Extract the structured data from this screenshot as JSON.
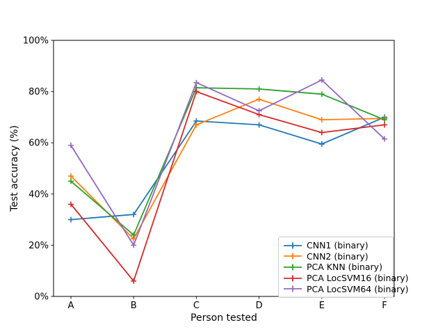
{
  "chart_data": {
    "type": "line",
    "title": "",
    "xlabel": "Person tested",
    "ylabel": "Test accuracy (%)",
    "categories": [
      "A",
      "B",
      "C",
      "D",
      "E",
      "F"
    ],
    "ytick_labels": [
      "0%",
      "20%",
      "40%",
      "60%",
      "80%",
      "100%"
    ],
    "ytick_values": [
      0,
      20,
      40,
      60,
      80,
      100
    ],
    "ylim": [
      0,
      100
    ],
    "grid": false,
    "legend_position": "lower right",
    "marker": "plus",
    "background_color": "#ffffff",
    "spine_color": "#000000",
    "series": [
      {
        "name": "CNN1 (binary)",
        "color": "#1f77b4",
        "values": [
          30,
          32,
          68.5,
          67,
          59.5,
          70
        ]
      },
      {
        "name": "CNN2 (binary)",
        "color": "#ff7f0e",
        "values": [
          47,
          22.5,
          67,
          77,
          69,
          69.5
        ]
      },
      {
        "name": "PCA KNN (binary)",
        "color": "#2ca02c",
        "values": [
          45,
          24,
          81.5,
          81,
          79,
          69
        ]
      },
      {
        "name": "PCA LocSVM16 (binary)",
        "color": "#d62728",
        "values": [
          36,
          6,
          80,
          71,
          64,
          67
        ]
      },
      {
        "name": "PCA LocSVM64 (binary)",
        "color": "#9467bd",
        "values": [
          59,
          20,
          83.5,
          72.5,
          84.5,
          61.5
        ]
      }
    ]
  }
}
